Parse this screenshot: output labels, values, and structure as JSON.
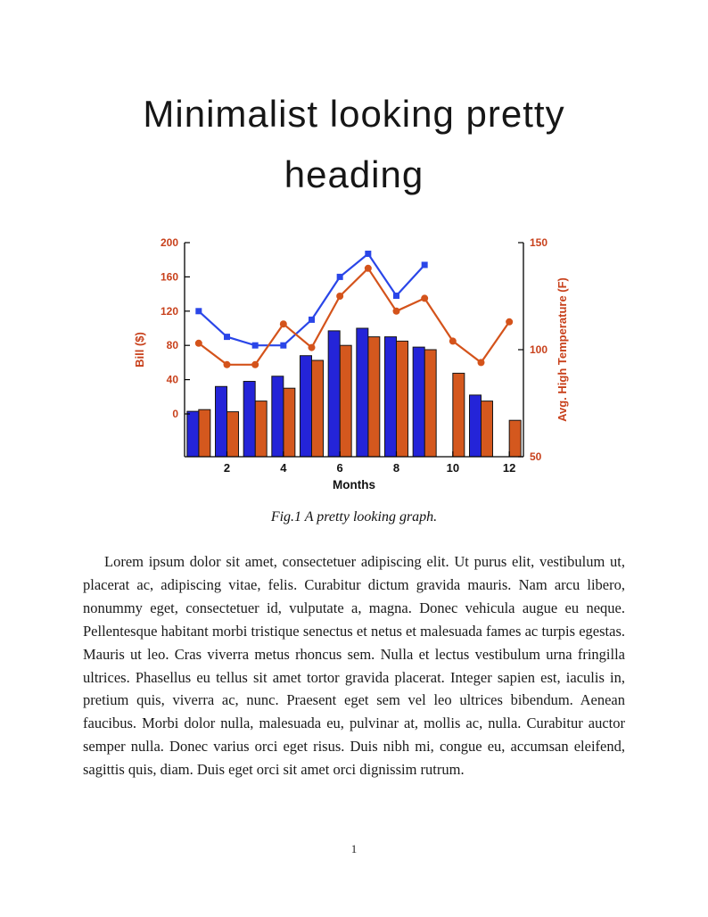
{
  "heading": {
    "line1": "Minimalist looking pretty",
    "line2": "heading"
  },
  "figure": {
    "caption": "Fig.1 A pretty looking graph."
  },
  "body_text": {
    "paragraph": "Lorem ipsum dolor sit amet, consectetuer adipiscing elit. Ut purus elit, vestibulum ut, placerat ac, adipiscing vitae, felis. Curabitur dictum gravida mauris. Nam arcu libero, nonummy eget, consectetuer id, vulputate a, magna. Donec vehicula augue eu neque. Pellentesque habitant morbi tristique senectus et netus et malesuada fames ac turpis egestas. Mauris ut leo. Cras viverra metus rhoncus sem. Nulla et lectus vestibulum urna fringilla ultrices. Phasellus eu tellus sit amet tortor gravida placerat. Integer sapien est, iaculis in, pretium quis, viverra ac, nunc. Praesent eget sem vel leo ultrices bibendum. Aenean faucibus. Morbi dolor nulla, malesuada eu, pulvinar at, mollis ac, nulla. Curabitur auctor semper nulla. Donec varius orci eget risus. Duis nibh mi, congue eu, accumsan eleifend, sagittis quis, diam. Duis eget orci sit amet orci dignissim rutrum."
  },
  "page": {
    "number": "1"
  },
  "chart_data": {
    "type": "bar",
    "title": "",
    "xlabel": "Months",
    "x": [
      1,
      2,
      3,
      4,
      5,
      6,
      7,
      8,
      9,
      10,
      11,
      12
    ],
    "x_ticks": [
      2,
      4,
      6,
      8,
      10,
      12
    ],
    "grid": false,
    "legend": "none",
    "left_axis": {
      "label": "Bill ($)",
      "range": [
        -50,
        200
      ],
      "ticks": [
        0,
        40,
        80,
        120,
        160,
        200
      ],
      "color": "#c8411c"
    },
    "right_axis": {
      "label": "Avg. High Temperature (F)",
      "range": [
        50,
        150
      ],
      "ticks": [
        50,
        100,
        150
      ],
      "color": "#c8411c"
    },
    "series": [
      {
        "name": "bill-bars",
        "kind": "bar",
        "axis": "left",
        "color": "#2424d8",
        "values": [
          3,
          32,
          38,
          44,
          68,
          97,
          100,
          90,
          78,
          null,
          22,
          null
        ]
      },
      {
        "name": "temperature-bars",
        "kind": "bar",
        "axis": "right",
        "color": "#d4581e",
        "values": [
          72,
          71,
          76,
          82,
          95,
          102,
          106,
          104,
          100,
          89,
          76,
          67
        ]
      },
      {
        "name": "bill-line",
        "kind": "line",
        "axis": "left",
        "marker": "square",
        "color": "#2a46e8",
        "values": [
          120,
          90,
          80,
          80,
          110,
          160,
          187,
          138,
          174,
          null,
          null,
          null
        ]
      },
      {
        "name": "temperature-line",
        "kind": "line",
        "axis": "right",
        "marker": "circle",
        "color": "#d4531b",
        "values": [
          103,
          93,
          93,
          112,
          101,
          125,
          138,
          118,
          124,
          104,
          94,
          113
        ]
      }
    ]
  }
}
